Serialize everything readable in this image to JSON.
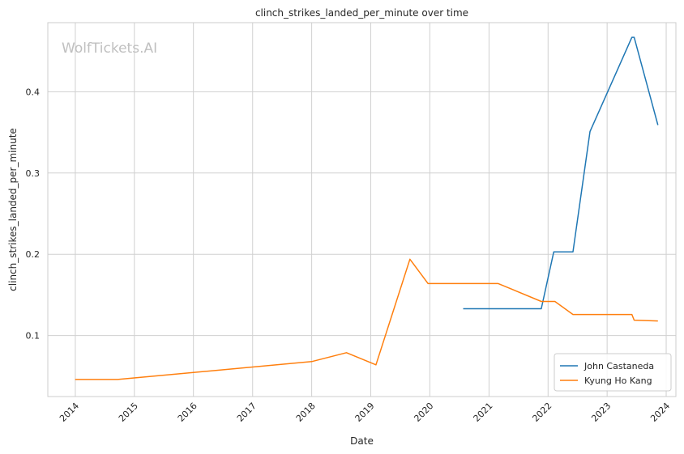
{
  "chart_data": {
    "type": "line",
    "title": "clinch_strikes_landed_per_minute over time",
    "xlabel": "Date",
    "ylabel": "clinch_strikes_landed_per_minute",
    "watermark": "WolfTickets.AI",
    "x_ticks": [
      "2014",
      "2015",
      "2016",
      "2017",
      "2018",
      "2019",
      "2020",
      "2021",
      "2022",
      "2023",
      "2024"
    ],
    "y_ticks": [
      "0.1",
      "0.2",
      "0.3",
      "0.4"
    ],
    "xlim": [
      "2013-07-15",
      "2024-03-01"
    ],
    "ylim": [
      0.025,
      0.485
    ],
    "grid": true,
    "legend_position": "lower-right",
    "series": [
      {
        "name": "John Castaneda",
        "color": "#1f77b4",
        "points": [
          [
            "2020-07-25",
            0.133
          ],
          [
            "2021-11-20",
            0.133
          ],
          [
            "2022-02-05",
            0.203
          ],
          [
            "2022-06-04",
            0.203
          ],
          [
            "2022-09-17",
            0.351
          ],
          [
            "2023-06-03",
            0.467
          ],
          [
            "2023-06-17",
            0.467
          ],
          [
            "2023-11-11",
            0.359
          ]
        ]
      },
      {
        "name": "Kyung Ho Kang",
        "color": "#ff7f0e",
        "points": [
          [
            "2013-12-31",
            0.046
          ],
          [
            "2014-09-20",
            0.046
          ],
          [
            "2018-01-01",
            0.068
          ],
          [
            "2018-08-04",
            0.079
          ],
          [
            "2019-02-02",
            0.064
          ],
          [
            "2019-08-31",
            0.194
          ],
          [
            "2019-12-21",
            0.164
          ],
          [
            "2021-02-27",
            0.164
          ],
          [
            "2021-11-20",
            0.142
          ],
          [
            "2022-02-12",
            0.142
          ],
          [
            "2022-06-04",
            0.126
          ],
          [
            "2023-06-03",
            0.126
          ],
          [
            "2023-06-17",
            0.119
          ],
          [
            "2023-11-11",
            0.118
          ]
        ]
      }
    ]
  }
}
